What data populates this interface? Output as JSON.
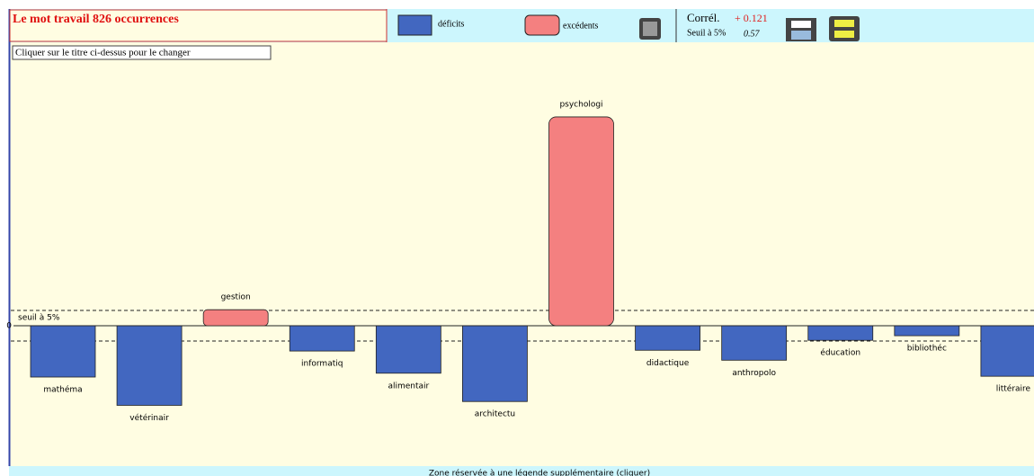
{
  "toolbar": {
    "deficit_label": "déficits",
    "excess_label": "excédents",
    "correlation_label": "Corrél.",
    "correlation": "+ 0.121",
    "threshold_label": "Seuil à 5%",
    "threshold_value": "0.57"
  },
  "hint": "Cliquer sur le titre ci-dessus pour le changer",
  "footer": "Zone réservée à une légende supplémentaire (cliquer)",
  "chart_data": {
    "type": "bar",
    "title": "Le mot travail 826 occurrences",
    "categories": [
      "mathéma",
      "vétérinair",
      "gestion",
      "informatiq",
      "alimentair",
      "architectu",
      "psychologi",
      "didactique",
      "anthropolo",
      "éducation",
      "bibliothéc",
      "littéraire"
    ],
    "values": [
      -6.7,
      -10.4,
      2.1,
      -3.3,
      -6.2,
      -9.9,
      27.3,
      -3.2,
      -4.5,
      -1.9,
      -1.3,
      -6.6
    ],
    "deficit_color": "#4267c0",
    "excess_color": "#f48080",
    "ylim": [
      -17.4,
      36.7
    ],
    "yticks": [
      0
    ],
    "threshold": 2,
    "threshold_text": "seuil à 5%"
  }
}
